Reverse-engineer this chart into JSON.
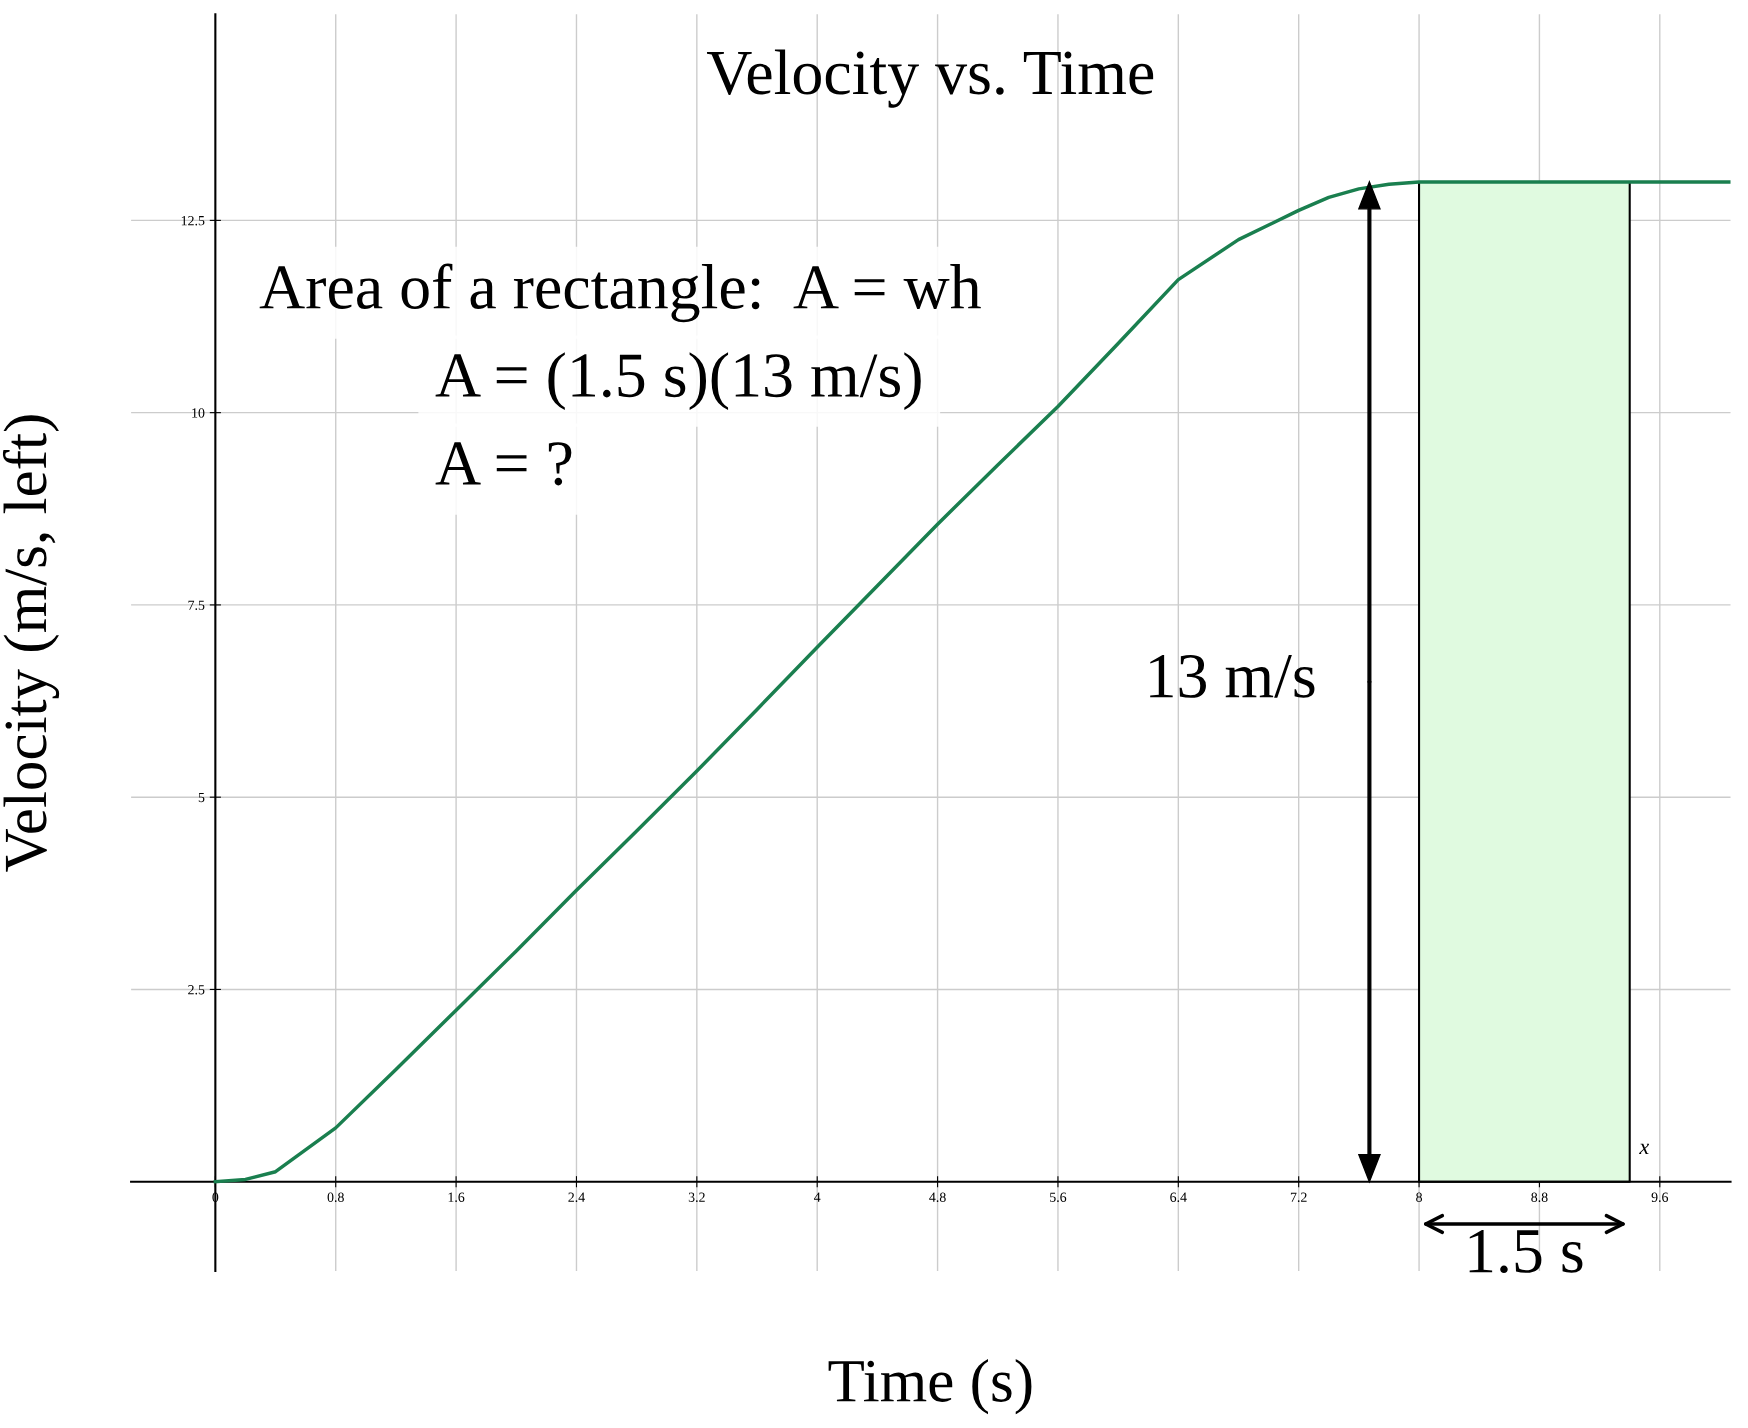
{
  "chart_data": {
    "type": "line",
    "title": "Velocity vs. Time",
    "xlabel": "Time (s)",
    "ylabel": "Velocity (m/s, left)",
    "xlim": [
      -0.56,
      10.07
    ],
    "ylim": [
      -1.16,
      15.18
    ],
    "xticks": [
      0,
      0.8,
      1.6,
      2.4,
      3.2,
      4,
      4.8,
      5.6,
      6.4,
      7.2,
      8,
      8.8,
      9.6
    ],
    "yticks": [
      2.5,
      5,
      7.5,
      10,
      12.5
    ],
    "grid": true,
    "series": [
      {
        "type": "area",
        "color": "#e0fae0",
        "x": [
          8.0,
          9.4
        ],
        "values": [
          13,
          13
        ]
      },
      {
        "color": "#1a7f4f",
        "x": [
          0,
          0.2,
          0.4,
          0.8,
          1.2,
          1.6,
          2.0,
          2.4,
          2.8,
          3.2,
          3.6,
          4.0,
          4.4,
          4.8,
          5.2,
          5.6,
          6.0,
          6.4,
          6.8,
          7.2,
          7.4,
          7.6,
          7.8,
          8.0,
          9.0,
          10.07
        ],
        "values": [
          0,
          0.03,
          0.13,
          0.7,
          1.46,
          2.23,
          3.0,
          3.79,
          4.56,
          5.34,
          6.14,
          6.95,
          7.75,
          8.55,
          9.32,
          10.08,
          10.9,
          11.73,
          12.25,
          12.63,
          12.8,
          12.91,
          12.97,
          13,
          13,
          13
        ]
      }
    ],
    "annotations": [
      "Area of a rectangle:  A = wh",
      "A = (1.5 s)(13 m/s)",
      "A = ?",
      "13 m/s",
      "1.5 s",
      "x"
    ]
  }
}
